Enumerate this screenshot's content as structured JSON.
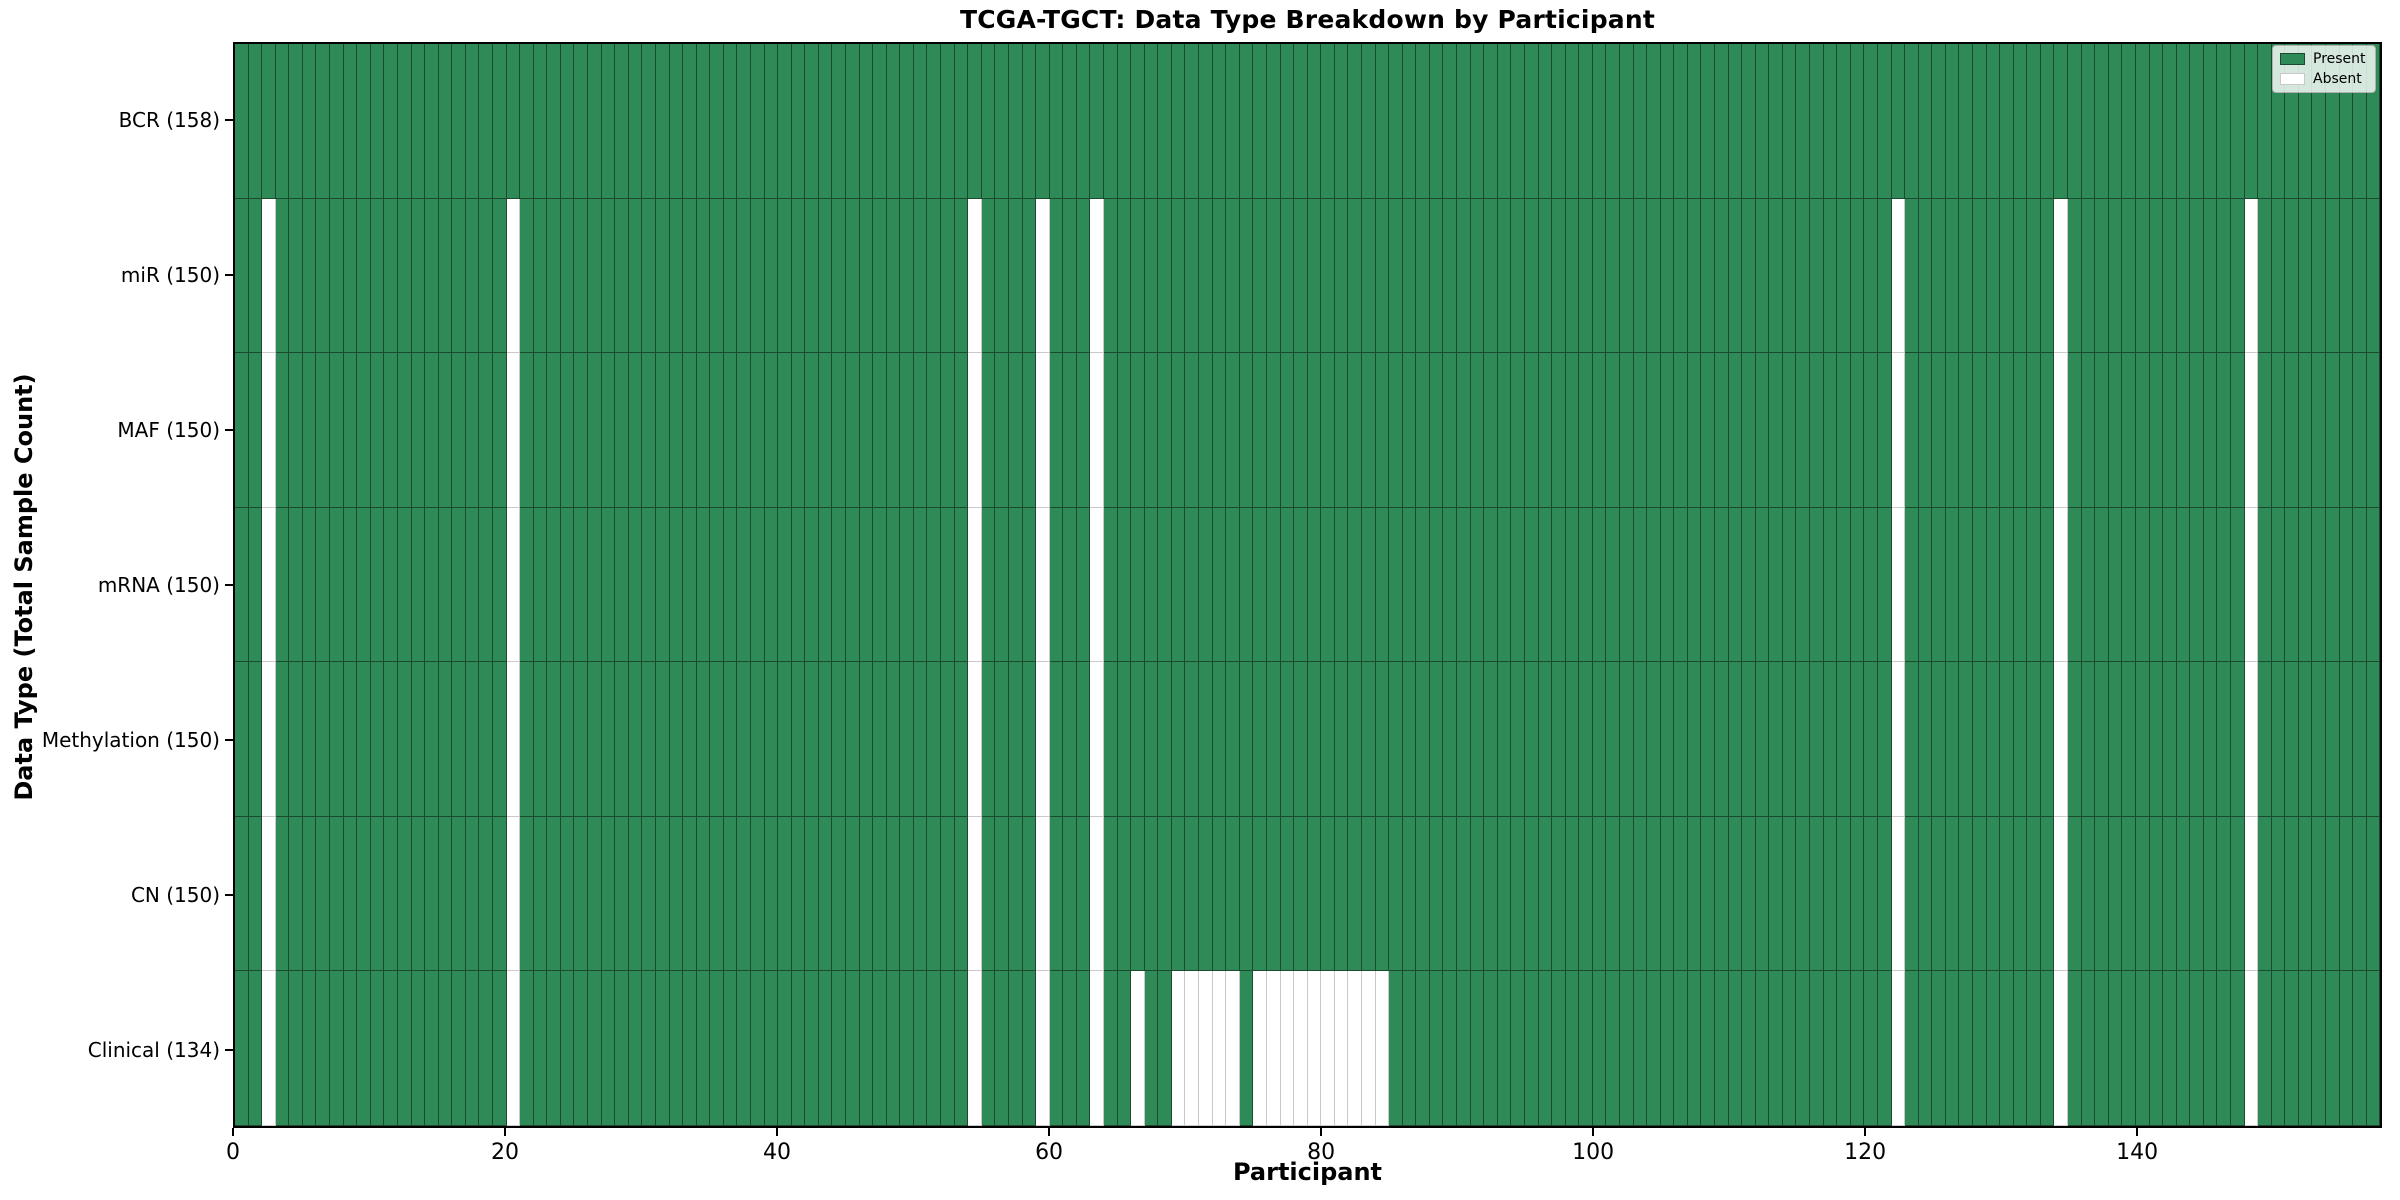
{
  "title": "TCGA-TGCT: Data Type Breakdown by Participant",
  "chart_data": {
    "type": "heatmap",
    "title": "TCGA-TGCT: Data Type Breakdown by Participant",
    "xlabel": "Participant",
    "ylabel": "Data Type (Total Sample Count)",
    "n_participants": 158,
    "x_ticks": [
      0,
      20,
      40,
      60,
      80,
      100,
      120,
      140
    ],
    "x_range": [
      0,
      158
    ],
    "grid": false,
    "legend_position": "upper right",
    "cell_states": [
      "Present",
      "Absent"
    ],
    "colors": {
      "present": "#2e8b57",
      "present_edge": "#1c4a2e",
      "absent": "#ffffff",
      "absent_edge": "#c9c9c9"
    },
    "legend": [
      {
        "label": "Present",
        "color": "#2e8b57"
      },
      {
        "label": "Absent",
        "color": "#ffffff"
      }
    ],
    "rows": [
      {
        "label": "BCR (158)",
        "data_type": "BCR",
        "total": 158,
        "absent": []
      },
      {
        "label": "miR (150)",
        "data_type": "miR",
        "total": 150,
        "absent": [
          2,
          20,
          54,
          59,
          63,
          122,
          134,
          148
        ]
      },
      {
        "label": "MAF (150)",
        "data_type": "MAF",
        "total": 150,
        "absent": [
          2,
          20,
          54,
          59,
          63,
          122,
          134,
          148
        ]
      },
      {
        "label": "mRNA (150)",
        "data_type": "mRNA",
        "total": 150,
        "absent": [
          2,
          20,
          54,
          59,
          63,
          122,
          134,
          148
        ]
      },
      {
        "label": "Methylation (150)",
        "data_type": "Methylation",
        "total": 150,
        "absent": [
          2,
          20,
          54,
          59,
          63,
          122,
          134,
          148
        ]
      },
      {
        "label": "CN (150)",
        "data_type": "CN",
        "total": 150,
        "absent": [
          2,
          20,
          54,
          59,
          63,
          122,
          134,
          148
        ]
      },
      {
        "label": "Clinical (134)",
        "data_type": "Clinical",
        "total": 134,
        "absent": [
          2,
          20,
          54,
          59,
          63,
          66,
          69,
          70,
          71,
          72,
          73,
          75,
          76,
          77,
          78,
          79,
          80,
          81,
          82,
          83,
          84,
          122,
          134,
          148
        ]
      }
    ]
  }
}
